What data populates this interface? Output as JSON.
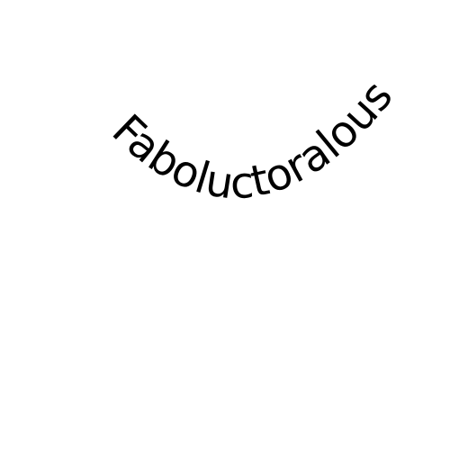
{
  "curved_text": {
    "word": "Faboluctoralous",
    "color": "#000000"
  }
}
